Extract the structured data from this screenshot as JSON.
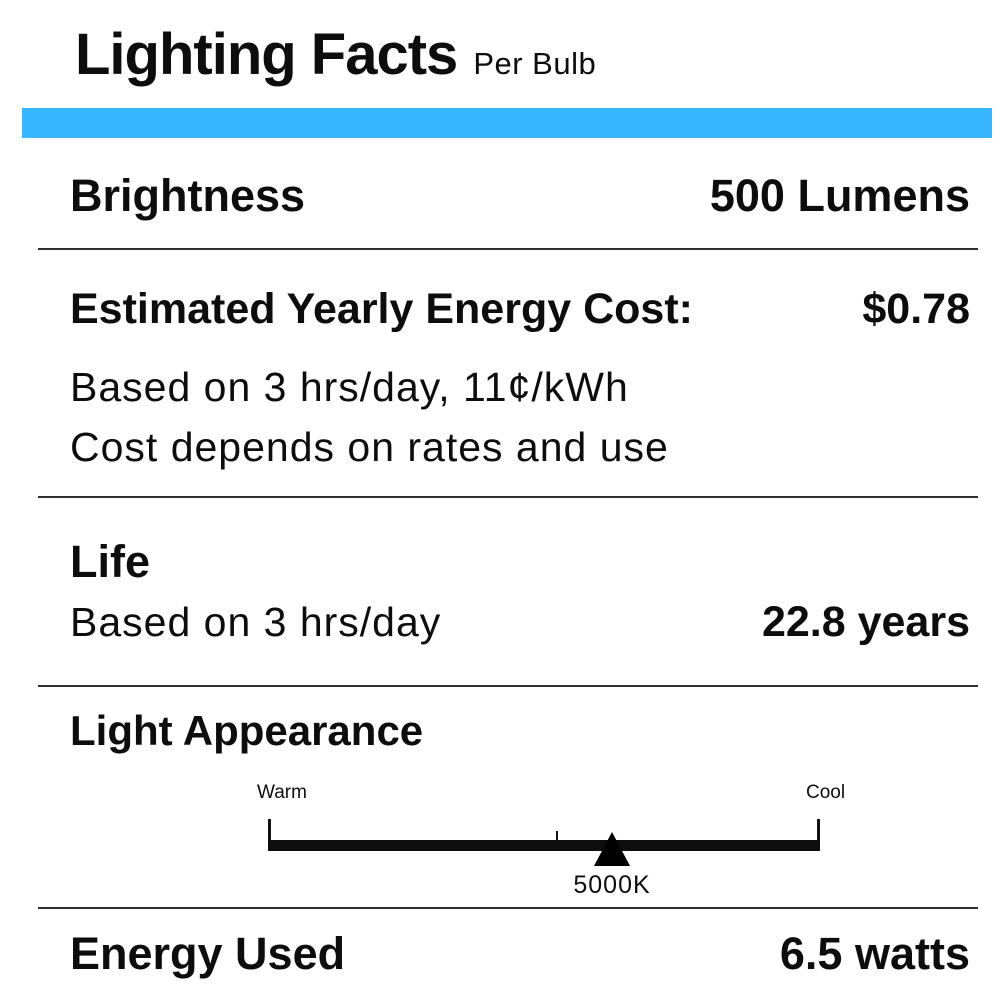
{
  "header": {
    "title": "Lighting Facts",
    "subtitle": "Per Bulb"
  },
  "accent_color": "#38b6ff",
  "rows": {
    "brightness": {
      "label": "Brightness",
      "value": "500 Lumens"
    },
    "energy_cost": {
      "label": "Estimated Yearly Energy Cost:",
      "value": "$0.78",
      "note_line1": "Based on 3 hrs/day, 11¢/kWh",
      "note_line2": "Cost depends on rates and use"
    },
    "life": {
      "label": "Life",
      "note": "Based on 3 hrs/day",
      "value": "22.8 years"
    },
    "light_appearance": {
      "label": "Light Appearance",
      "scale": {
        "left_label": "Warm",
        "right_label": "Cool",
        "marker_value": "5000K"
      }
    },
    "energy_used": {
      "label": "Energy Used",
      "value": "6.5 watts"
    }
  }
}
